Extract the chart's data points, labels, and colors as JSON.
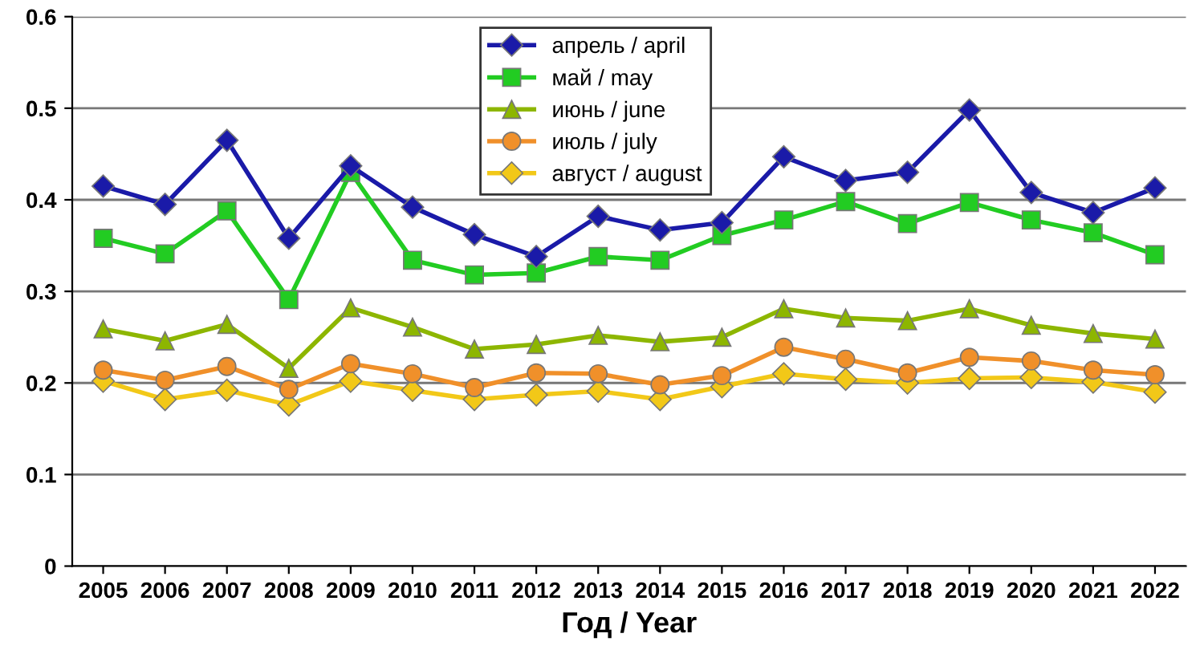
{
  "chart_data": {
    "type": "line",
    "xlabel": "Год / Year",
    "categories": [
      "2005",
      "2006",
      "2007",
      "2008",
      "2009",
      "2010",
      "2011",
      "2012",
      "2013",
      "2014",
      "2015",
      "2016",
      "2017",
      "2018",
      "2019",
      "2020",
      "2021",
      "2022"
    ],
    "series": [
      {
        "name": "апрель / april",
        "color": "#1a1aa8",
        "marker": "diamond",
        "values": [
          0.415,
          0.395,
          0.465,
          0.358,
          0.437,
          0.392,
          0.362,
          0.338,
          0.382,
          0.367,
          0.375,
          0.447,
          0.421,
          0.43,
          0.498,
          0.408,
          0.386,
          0.413
        ]
      },
      {
        "name": "май / may",
        "color": "#22cc22",
        "marker": "square",
        "values": [
          0.358,
          0.341,
          0.388,
          0.291,
          0.43,
          0.334,
          0.318,
          0.32,
          0.338,
          0.334,
          0.361,
          0.378,
          0.398,
          0.374,
          0.397,
          0.378,
          0.364,
          0.34
        ]
      },
      {
        "name": "июнь / june",
        "color": "#8db600",
        "marker": "triangle",
        "values": [
          0.259,
          0.246,
          0.264,
          0.216,
          0.282,
          0.261,
          0.237,
          0.242,
          0.252,
          0.245,
          0.25,
          0.281,
          0.271,
          0.268,
          0.281,
          0.263,
          0.254,
          0.248
        ]
      },
      {
        "name": "июль / july",
        "color": "#f0902a",
        "marker": "circle",
        "values": [
          0.214,
          0.203,
          0.218,
          0.193,
          0.221,
          0.21,
          0.195,
          0.211,
          0.21,
          0.198,
          0.208,
          0.239,
          0.226,
          0.211,
          0.228,
          0.224,
          0.214,
          0.209
        ]
      },
      {
        "name": "август / august",
        "color": "#f2c818",
        "marker": "diamond",
        "values": [
          0.202,
          0.182,
          0.192,
          0.176,
          0.202,
          0.192,
          0.182,
          0.187,
          0.191,
          0.182,
          0.196,
          0.21,
          0.204,
          0.2,
          0.205,
          0.206,
          0.201,
          0.19
        ]
      }
    ],
    "ylim": [
      0,
      0.6
    ],
    "yticks": [
      0,
      0.1,
      0.2,
      0.3,
      0.4,
      0.5,
      0.6
    ],
    "grid": "y",
    "legend": "top",
    "line_style": "solid"
  }
}
